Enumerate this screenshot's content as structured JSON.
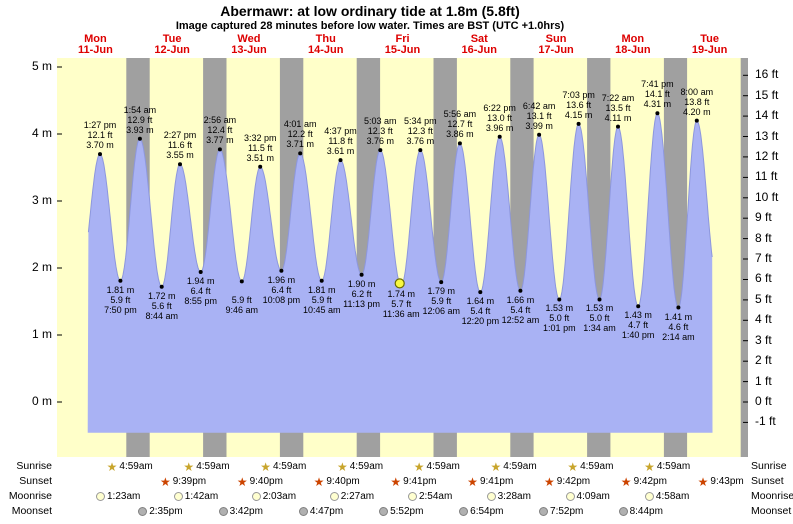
{
  "title": "Abermawr: at low ordinary tide at 1.8m (5.8ft)",
  "subtitle": "Image captured 28 minutes before low water. Times are BST (UTC +1.0hrs)",
  "colors": {
    "background": "#ffffff",
    "plot_bg": "#ffffc9",
    "night_band": "#a0a0a0",
    "tide_fill": "#a9b2f4",
    "tide_stroke": "#8d97dd",
    "day_label": "#dd0000",
    "text": "#000000",
    "current_marker_fill": "#f8f840",
    "current_marker_stroke": "#6b6b00",
    "sunrise_star": "#c8a52c",
    "sunset_star": "#cc4400",
    "moonrise_disc": "#ffffd0",
    "moonrise_border": "#999999",
    "moonset_disc": "#b0b0b0",
    "moonset_border": "#808080"
  },
  "chart_data": {
    "type": "area",
    "title": "Abermawr: at low ordinary tide at 1.8m (5.8ft)",
    "x_days": [
      {
        "dow": "Mon",
        "date": "11-Jun"
      },
      {
        "dow": "Tue",
        "date": "12-Jun"
      },
      {
        "dow": "Wed",
        "date": "13-Jun"
      },
      {
        "dow": "Thu",
        "date": "14-Jun"
      },
      {
        "dow": "Fri",
        "date": "15-Jun"
      },
      {
        "dow": "Sat",
        "date": "16-Jun"
      },
      {
        "dow": "Sun",
        "date": "17-Jun"
      },
      {
        "dow": "Mon",
        "date": "18-Jun"
      },
      {
        "dow": "Tue",
        "date": "19-Jun"
      }
    ],
    "y_left_ticks_m": [
      5,
      4,
      3,
      2,
      1,
      0
    ],
    "y_left_suffix": " m",
    "y_right_ticks_ft": [
      16,
      15,
      14,
      13,
      12,
      11,
      10,
      9,
      8,
      7,
      6,
      5,
      4,
      3,
      2,
      1,
      0,
      -1
    ],
    "y_right_suffix": " ft",
    "hours_total": 216,
    "tides": [
      {
        "kind": "high",
        "t": 13.45,
        "height_m": 3.7,
        "label": [
          "1:27 pm",
          "12.1 ft",
          "3.70 m"
        ]
      },
      {
        "kind": "low",
        "t": 19.83,
        "height_m": 1.81,
        "label": [
          "1.81 m",
          "5.9 ft",
          "7:50 pm"
        ]
      },
      {
        "kind": "high",
        "t": 25.9,
        "height_m": 3.93,
        "label": [
          "1:54 am",
          "12.9 ft",
          "3.93 m"
        ]
      },
      {
        "kind": "low",
        "t": 32.73,
        "height_m": 1.72,
        "label": [
          "1.72 m",
          "5.6 ft",
          "8:44 am"
        ]
      },
      {
        "kind": "high",
        "t": 38.45,
        "height_m": 3.55,
        "label": [
          "2:27 pm",
          "11.6 ft",
          "3.55 m"
        ]
      },
      {
        "kind": "low",
        "t": 44.92,
        "height_m": 1.94,
        "label": [
          "1.94 m",
          "6.4 ft",
          "8:55 pm"
        ]
      },
      {
        "kind": "high",
        "t": 50.93,
        "height_m": 3.77,
        "label": [
          "2:56 am",
          "12.4 ft",
          "3.77 m"
        ]
      },
      {
        "kind": "low",
        "t": 57.77,
        "height_m": 1.8,
        "label": [
          "",
          "5.9 ft",
          "9:46 am"
        ]
      },
      {
        "kind": "high",
        "t": 63.53,
        "height_m": 3.51,
        "label": [
          "3:32 pm",
          "11.5 ft",
          "3.51 m"
        ]
      },
      {
        "kind": "low",
        "t": 70.13,
        "height_m": 1.96,
        "label": [
          "1.96 m",
          "6.4 ft",
          "10:08 pm"
        ]
      },
      {
        "kind": "high",
        "t": 76.02,
        "height_m": 3.71,
        "label": [
          "4:01 am",
          "12.2 ft",
          "3.71 m"
        ]
      },
      {
        "kind": "low",
        "t": 82.75,
        "height_m": 1.81,
        "label": [
          "1.81 m",
          "5.9 ft",
          "10:45 am"
        ]
      },
      {
        "kind": "high",
        "t": 88.62,
        "height_m": 3.61,
        "label": [
          "4:37 pm",
          "11.8 ft",
          "3.61 m"
        ]
      },
      {
        "kind": "low",
        "t": 95.22,
        "height_m": 1.9,
        "label": [
          "1.90 m",
          "6.2 ft",
          "11:13 pm"
        ]
      },
      {
        "kind": "high",
        "t": 101.05,
        "height_m": 3.76,
        "label": [
          "5:03 am",
          "12.3 ft",
          "3.76 m"
        ]
      },
      {
        "kind": "low",
        "t": 107.6,
        "height_m": 1.74,
        "label": [
          "1.74 m",
          "5.7 ft",
          "11:36 am"
        ],
        "current": true
      },
      {
        "kind": "high",
        "t": 113.57,
        "height_m": 3.76,
        "label": [
          "5:34 pm",
          "12.3 ft",
          "3.76 m"
        ]
      },
      {
        "kind": "low",
        "t": 120.1,
        "height_m": 1.79,
        "label": [
          "1.79 m",
          "5.9 ft",
          "12:06 am"
        ]
      },
      {
        "kind": "high",
        "t": 125.93,
        "height_m": 3.86,
        "label": [
          "5:56 am",
          "12.7 ft",
          "3.86 m"
        ]
      },
      {
        "kind": "low",
        "t": 132.33,
        "height_m": 1.64,
        "label": [
          "1.64 m",
          "5.4 ft",
          "12:20 pm"
        ]
      },
      {
        "kind": "high",
        "t": 138.37,
        "height_m": 3.96,
        "label": [
          "6:22 pm",
          "13.0 ft",
          "3.96 m"
        ]
      },
      {
        "kind": "low",
        "t": 144.87,
        "height_m": 1.66,
        "label": [
          "1.66 m",
          "5.4 ft",
          "12:52 am"
        ]
      },
      {
        "kind": "high",
        "t": 150.7,
        "height_m": 3.99,
        "label": [
          "6:42 am",
          "13.1 ft",
          "3.99 m"
        ]
      },
      {
        "kind": "low",
        "t": 157.02,
        "height_m": 1.53,
        "label": [
          "1.53 m",
          "5.0 ft",
          "1:01 pm"
        ]
      },
      {
        "kind": "high",
        "t": 163.05,
        "height_m": 4.15,
        "label": [
          "7:03 pm",
          "13.6 ft",
          "4.15 m"
        ]
      },
      {
        "kind": "low",
        "t": 169.57,
        "height_m": 1.53,
        "label": [
          "1.53 m",
          "5.0 ft",
          "1:34 am"
        ]
      },
      {
        "kind": "high",
        "t": 175.37,
        "height_m": 4.11,
        "label": [
          "7:22 am",
          "13.5 ft",
          "4.11 m"
        ]
      },
      {
        "kind": "low",
        "t": 181.67,
        "height_m": 1.43,
        "label": [
          "1.43 m",
          "4.7 ft",
          "1:40 pm"
        ]
      },
      {
        "kind": "high",
        "t": 187.68,
        "height_m": 4.31,
        "label": [
          "7:41 pm",
          "14.1 ft",
          "4.31 m"
        ]
      },
      {
        "kind": "low",
        "t": 194.23,
        "height_m": 1.41,
        "label": [
          "1.41 m",
          "4.6 ft",
          "2:14 am"
        ]
      },
      {
        "kind": "high",
        "t": 200.0,
        "height_m": 4.2,
        "label": [
          "8:00 am",
          "13.8 ft",
          "4.20 m"
        ]
      }
    ],
    "current_marker": {
      "t": 107.13,
      "height_m": 1.77
    },
    "night_bands": [
      [
        21.65,
        28.98
      ],
      [
        45.67,
        52.98
      ],
      [
        69.67,
        76.98
      ],
      [
        93.68,
        100.98
      ],
      [
        117.68,
        124.98
      ],
      [
        141.7,
        148.98
      ],
      [
        165.7,
        172.98
      ],
      [
        189.72,
        196.98
      ],
      [
        213.72,
        216.0
      ]
    ],
    "curve": {
      "pre": {
        "t": 7.2,
        "h": 1.85
      },
      "post": {
        "t": 206.3,
        "h": 1.85
      },
      "draw_from": 9.6,
      "draw_to": 204.9,
      "bottom_m": -0.46
    }
  },
  "astro": {
    "rows": [
      {
        "name": "Sunrise",
        "icon": "sunrise",
        "times": [
          "4:59am",
          "4:59am",
          "4:59am",
          "4:59am",
          "4:59am",
          "4:59am",
          "4:59am",
          "4:59am"
        ],
        "hours": [
          28.98,
          52.98,
          76.98,
          100.98,
          124.98,
          148.98,
          172.98,
          196.98
        ]
      },
      {
        "name": "Sunset",
        "icon": "sunset",
        "times": [
          "9:39pm",
          "9:40pm",
          "9:40pm",
          "9:41pm",
          "9:41pm",
          "9:42pm",
          "9:42pm",
          "9:43pm"
        ],
        "hours": [
          45.65,
          69.67,
          93.67,
          117.68,
          141.68,
          165.7,
          189.7,
          213.72
        ]
      },
      {
        "name": "Moonrise",
        "icon": "moonrise",
        "times": [
          "1:23am",
          "1:42am",
          "2:03am",
          "2:27am",
          "2:54am",
          "3:28am",
          "4:09am",
          "4:58am"
        ],
        "hours": [
          25.38,
          49.7,
          74.05,
          98.45,
          122.9,
          147.47,
          172.15,
          196.97
        ]
      },
      {
        "name": "Moonset",
        "icon": "moonset",
        "times": [
          "2:35pm",
          "3:42pm",
          "4:47pm",
          "5:52pm",
          "6:54pm",
          "7:52pm",
          "8:44pm"
        ],
        "hours": [
          38.58,
          63.7,
          88.78,
          113.87,
          138.9,
          163.87,
          188.73
        ]
      }
    ]
  }
}
